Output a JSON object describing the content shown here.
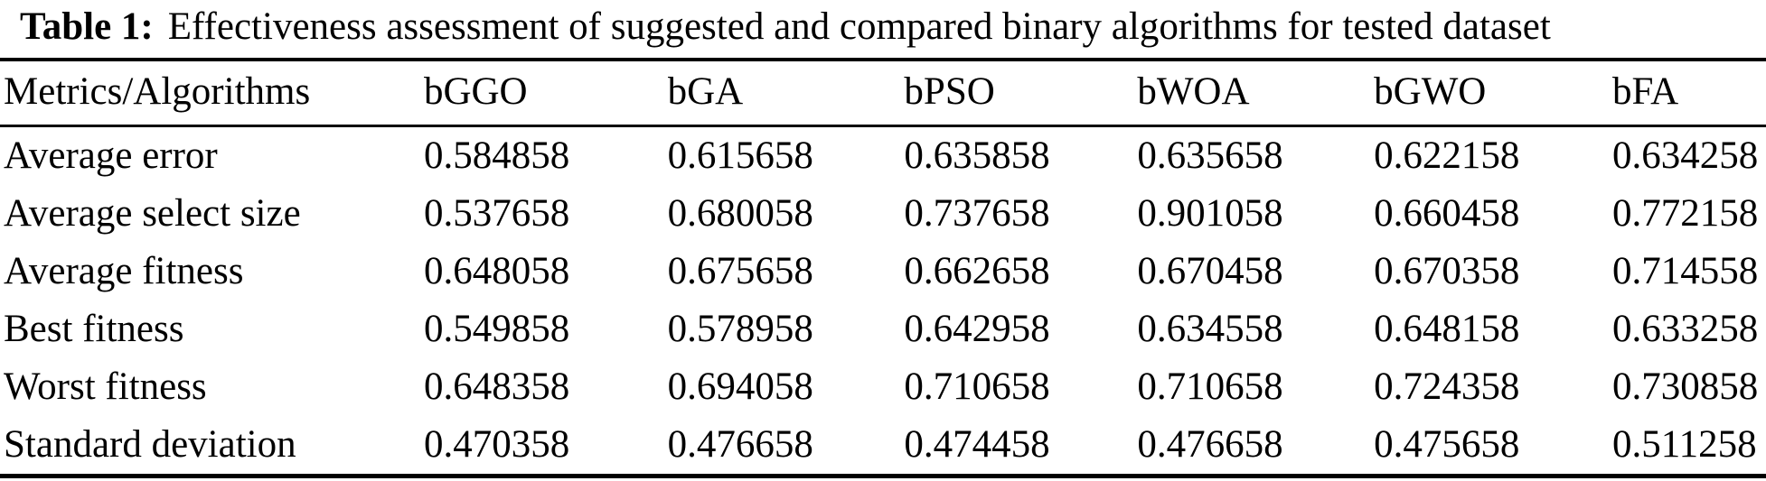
{
  "caption": {
    "label": "Table 1:",
    "text": "Effectiveness assessment of suggested and compared binary algorithms for tested dataset"
  },
  "table": {
    "columns": [
      "Metrics/Algorithms",
      "bGGO",
      "bGA",
      "bPSO",
      "bWOA",
      "bGWO",
      "bFA"
    ],
    "rows": [
      {
        "metric": "Average error",
        "values": [
          "0.584858",
          "0.615658",
          "0.635858",
          "0.635658",
          "0.622158",
          "0.634258"
        ]
      },
      {
        "metric": "Average select size",
        "values": [
          "0.537658",
          "0.680058",
          "0.737658",
          "0.901058",
          "0.660458",
          "0.772158"
        ]
      },
      {
        "metric": "Average fitness",
        "values": [
          "0.648058",
          "0.675658",
          "0.662658",
          "0.670458",
          "0.670358",
          "0.714558"
        ]
      },
      {
        "metric": "Best fitness",
        "values": [
          "0.549858",
          "0.578958",
          "0.642958",
          "0.634558",
          "0.648158",
          "0.633258"
        ]
      },
      {
        "metric": "Worst fitness",
        "values": [
          "0.648358",
          "0.694058",
          "0.710658",
          "0.710658",
          "0.724358",
          "0.730858"
        ]
      },
      {
        "metric": "Standard deviation",
        "values": [
          "0.470358",
          "0.476658",
          "0.474458",
          "0.476658",
          "0.475658",
          "0.511258"
        ]
      }
    ]
  },
  "chart_data": {
    "type": "table",
    "title": "Table 1: Effectiveness assessment of suggested and compared binary algorithms for tested dataset",
    "columns": [
      "Metrics/Algorithms",
      "bGGO",
      "bGA",
      "bPSO",
      "bWOA",
      "bGWO",
      "bFA"
    ],
    "series": [
      {
        "name": "bGGO",
        "values": [
          0.584858,
          0.537658,
          0.648058,
          0.549858,
          0.648358,
          0.470358
        ]
      },
      {
        "name": "bGA",
        "values": [
          0.615658,
          0.680058,
          0.675658,
          0.578958,
          0.694058,
          0.476658
        ]
      },
      {
        "name": "bPSO",
        "values": [
          0.635858,
          0.737658,
          0.662658,
          0.642958,
          0.710658,
          0.474458
        ]
      },
      {
        "name": "bWOA",
        "values": [
          0.635658,
          0.901058,
          0.670458,
          0.634558,
          0.710658,
          0.476658
        ]
      },
      {
        "name": "bGWO",
        "values": [
          0.622158,
          0.660458,
          0.670358,
          0.648158,
          0.724358,
          0.475658
        ]
      },
      {
        "name": "bFA",
        "values": [
          0.634258,
          0.772158,
          0.714558,
          0.633258,
          0.730858,
          0.511258
        ]
      }
    ],
    "categories": [
      "Average error",
      "Average select size",
      "Average fitness",
      "Best fitness",
      "Worst fitness",
      "Standard deviation"
    ]
  },
  "colors": {
    "background": "#ffffff",
    "text": "#000000",
    "rule": "#000000"
  }
}
